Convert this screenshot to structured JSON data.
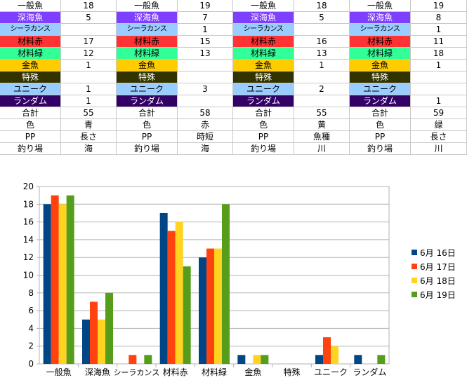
{
  "row_colors": [
    "#ffffff",
    "#7f3fff",
    "#99ccff",
    "#ff3333",
    "#33ff99",
    "#ffcc00",
    "#333300",
    "#99ccff",
    "#330066",
    "#ffffff",
    "#ffffff",
    "#ffffff",
    "#ffffff"
  ],
  "row_dark": [
    false,
    true,
    false,
    false,
    false,
    false,
    true,
    false,
    true,
    false,
    false,
    false,
    false
  ],
  "days": [
    {
      "rows": [
        {
          "label": "一般魚",
          "value": "18"
        },
        {
          "label": "深海魚",
          "value": "5"
        },
        {
          "label": "シーラカンス",
          "value": ""
        },
        {
          "label": "材料赤",
          "value": "17"
        },
        {
          "label": "材料緑",
          "value": "12"
        },
        {
          "label": "金魚",
          "value": "1"
        },
        {
          "label": "特殊",
          "value": ""
        },
        {
          "label": "ユニーク",
          "value": "1"
        },
        {
          "label": "ランダム",
          "value": "1"
        },
        {
          "label": "合計",
          "value": "55"
        },
        {
          "label": "色",
          "value": "青"
        },
        {
          "label": "PP",
          "value": "長さ"
        },
        {
          "label": "釣り場",
          "value": "海"
        }
      ]
    },
    {
      "rows": [
        {
          "label": "一般魚",
          "value": "19"
        },
        {
          "label": "深海魚",
          "value": "7"
        },
        {
          "label": "シーラカンス",
          "value": "1"
        },
        {
          "label": "材料赤",
          "value": "15"
        },
        {
          "label": "材料緑",
          "value": "13"
        },
        {
          "label": "金魚",
          "value": ""
        },
        {
          "label": "特殊",
          "value": ""
        },
        {
          "label": "ユニーク",
          "value": "3"
        },
        {
          "label": "ランダム",
          "value": ""
        },
        {
          "label": "合計",
          "value": "58"
        },
        {
          "label": "色",
          "value": "赤"
        },
        {
          "label": "PP",
          "value": "時短"
        },
        {
          "label": "釣り場",
          "value": "海"
        }
      ]
    },
    {
      "rows": [
        {
          "label": "一般魚",
          "value": "18"
        },
        {
          "label": "深海魚",
          "value": "5"
        },
        {
          "label": "シーラカンス",
          "value": ""
        },
        {
          "label": "材料赤",
          "value": "16"
        },
        {
          "label": "材料緑",
          "value": "13"
        },
        {
          "label": "金魚",
          "value": "1"
        },
        {
          "label": "特殊",
          "value": ""
        },
        {
          "label": "ユニーク",
          "value": "2"
        },
        {
          "label": "ランダム",
          "value": ""
        },
        {
          "label": "合計",
          "value": "55"
        },
        {
          "label": "色",
          "value": "黄"
        },
        {
          "label": "PP",
          "value": "魚種"
        },
        {
          "label": "釣り場",
          "value": "川"
        }
      ]
    },
    {
      "rows": [
        {
          "label": "一般魚",
          "value": "19"
        },
        {
          "label": "深海魚",
          "value": "8"
        },
        {
          "label": "シーラカンス",
          "value": "1"
        },
        {
          "label": "材料赤",
          "value": "11"
        },
        {
          "label": "材料緑",
          "value": "18"
        },
        {
          "label": "金魚",
          "value": "1"
        },
        {
          "label": "特殊",
          "value": ""
        },
        {
          "label": "ユニーク",
          "value": ""
        },
        {
          "label": "ランダム",
          "value": "1"
        },
        {
          "label": "合計",
          "value": "59"
        },
        {
          "label": "色",
          "value": "緑"
        },
        {
          "label": "PP",
          "value": "長さ"
        },
        {
          "label": "釣り場",
          "value": "川"
        }
      ]
    }
  ],
  "chart_data": {
    "type": "bar",
    "categories": [
      "一般魚",
      "深海魚",
      "シーラカンス",
      "材料赤",
      "材料緑",
      "金魚",
      "特殊",
      "ユニーク",
      "ランダム"
    ],
    "series": [
      {
        "name": "6月 16日",
        "color": "#004586",
        "values": [
          18,
          5,
          0,
          17,
          12,
          1,
          0,
          1,
          1
        ]
      },
      {
        "name": "6月 17日",
        "color": "#ff420e",
        "values": [
          19,
          7,
          1,
          15,
          13,
          0,
          0,
          3,
          0
        ]
      },
      {
        "name": "6月 18日",
        "color": "#ffd320",
        "values": [
          18,
          5,
          0,
          16,
          13,
          1,
          0,
          2,
          0
        ]
      },
      {
        "name": "6月 19日",
        "color": "#579d1c",
        "values": [
          19,
          8,
          1,
          11,
          18,
          1,
          0,
          0,
          1
        ]
      }
    ],
    "ylim": [
      0,
      20
    ],
    "yticks": [
      "0",
      "2",
      "4",
      "6",
      "8",
      "10",
      "12",
      "14",
      "16",
      "18",
      "20"
    ],
    "grid": true,
    "legend": "right"
  }
}
